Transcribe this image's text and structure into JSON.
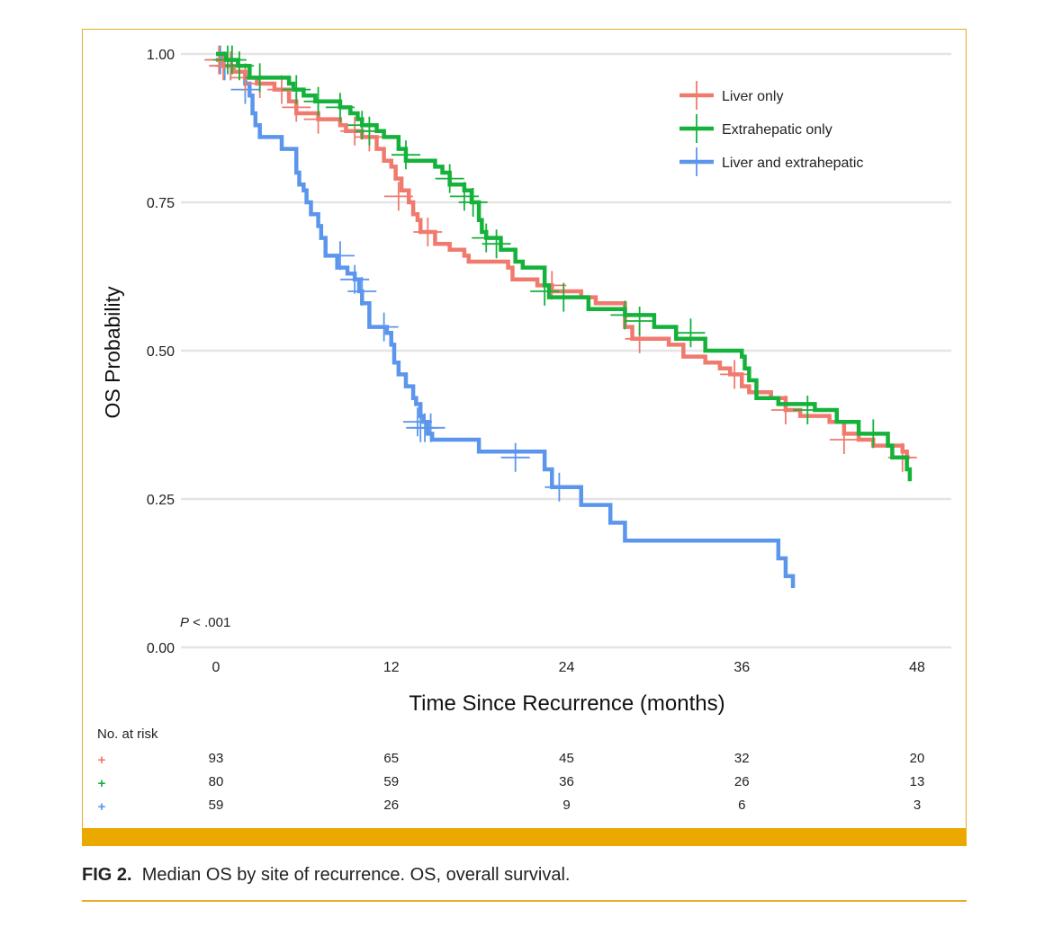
{
  "chart_data": {
    "type": "line",
    "subtype": "kaplan-meier",
    "title": "",
    "xlabel": "Time Since Recurrence (months)",
    "ylabel": "OS Probability",
    "xlim": [
      0,
      48
    ],
    "ylim": [
      0,
      1
    ],
    "x_ticks": [
      "0",
      "12",
      "24",
      "36",
      "48"
    ],
    "y_ticks": [
      "0.00",
      "0.25",
      "0.50",
      "0.75",
      "1.00"
    ],
    "annotation": "P < .001",
    "legend_position": "top-right",
    "series": [
      {
        "name": "Liver only",
        "color": "#f07a6e",
        "steps": [
          [
            0,
            0.99
          ],
          [
            0.5,
            0.98
          ],
          [
            1.2,
            0.97
          ],
          [
            2,
            0.96
          ],
          [
            2.8,
            0.95
          ],
          [
            4,
            0.94
          ],
          [
            5,
            0.92
          ],
          [
            5.5,
            0.9
          ],
          [
            7,
            0.89
          ],
          [
            8.5,
            0.88
          ],
          [
            8.9,
            0.87
          ],
          [
            10,
            0.86
          ],
          [
            11,
            0.84
          ],
          [
            11.5,
            0.82
          ],
          [
            12,
            0.81
          ],
          [
            12.3,
            0.79
          ],
          [
            12.7,
            0.77
          ],
          [
            13.2,
            0.75
          ],
          [
            13.5,
            0.73
          ],
          [
            13.8,
            0.72
          ],
          [
            14,
            0.7
          ],
          [
            15,
            0.68
          ],
          [
            16,
            0.67
          ],
          [
            17,
            0.66
          ],
          [
            17.3,
            0.65
          ],
          [
            20,
            0.64
          ],
          [
            20.3,
            0.62
          ],
          [
            22,
            0.61
          ],
          [
            23,
            0.6
          ],
          [
            25,
            0.59
          ],
          [
            26,
            0.58
          ],
          [
            28,
            0.56
          ],
          [
            28,
            0.54
          ],
          [
            28.5,
            0.52
          ],
          [
            31,
            0.51
          ],
          [
            32,
            0.49
          ],
          [
            33.5,
            0.48
          ],
          [
            34.5,
            0.47
          ],
          [
            35.2,
            0.46
          ],
          [
            36,
            0.44
          ],
          [
            36.5,
            0.43
          ],
          [
            38,
            0.42
          ],
          [
            39,
            0.4
          ],
          [
            40,
            0.39
          ],
          [
            42,
            0.38
          ],
          [
            43,
            0.36
          ],
          [
            44,
            0.35
          ],
          [
            45,
            0.34
          ],
          [
            47,
            0.33
          ],
          [
            47.3,
            0.32
          ]
        ],
        "censor": [
          [
            0.2,
            0.99
          ],
          [
            0.5,
            0.98
          ],
          [
            1,
            0.98
          ],
          [
            2,
            0.96
          ],
          [
            3,
            0.95
          ],
          [
            4.5,
            0.94
          ],
          [
            5.5,
            0.91
          ],
          [
            7,
            0.89
          ],
          [
            9.5,
            0.87
          ],
          [
            10.5,
            0.86
          ],
          [
            12.5,
            0.76
          ],
          [
            14.5,
            0.7
          ],
          [
            23,
            0.61
          ],
          [
            29,
            0.52
          ],
          [
            35.5,
            0.46
          ],
          [
            39,
            0.4
          ],
          [
            43,
            0.35
          ],
          [
            47,
            0.32
          ]
        ],
        "end": 47.5
      },
      {
        "name": "Extrahepatic only",
        "color": "#14b23a",
        "steps": [
          [
            0,
            1.0
          ],
          [
            0.7,
            0.99
          ],
          [
            1.5,
            0.98
          ],
          [
            2.3,
            0.96
          ],
          [
            5,
            0.95
          ],
          [
            5.3,
            0.94
          ],
          [
            6,
            0.93
          ],
          [
            6.8,
            0.92
          ],
          [
            8.5,
            0.91
          ],
          [
            9.2,
            0.9
          ],
          [
            9.7,
            0.89
          ],
          [
            10,
            0.88
          ],
          [
            11,
            0.87
          ],
          [
            11.5,
            0.86
          ],
          [
            12.5,
            0.84
          ],
          [
            13,
            0.82
          ],
          [
            15,
            0.81
          ],
          [
            15.5,
            0.8
          ],
          [
            16,
            0.78
          ],
          [
            17,
            0.77
          ],
          [
            17.5,
            0.75
          ],
          [
            18,
            0.72
          ],
          [
            18.2,
            0.7
          ],
          [
            18.5,
            0.69
          ],
          [
            19.5,
            0.67
          ],
          [
            20.5,
            0.65
          ],
          [
            21,
            0.64
          ],
          [
            22.5,
            0.61
          ],
          [
            22.8,
            0.59
          ],
          [
            25.5,
            0.57
          ],
          [
            28,
            0.56
          ],
          [
            30,
            0.54
          ],
          [
            31.5,
            0.52
          ],
          [
            33.5,
            0.5
          ],
          [
            36,
            0.49
          ],
          [
            36.2,
            0.47
          ],
          [
            36.5,
            0.45
          ],
          [
            37,
            0.42
          ],
          [
            38.5,
            0.41
          ],
          [
            41,
            0.4
          ],
          [
            42.5,
            0.38
          ],
          [
            44,
            0.36
          ],
          [
            46,
            0.34
          ],
          [
            46.3,
            0.32
          ],
          [
            47.3,
            0.3
          ],
          [
            47.5,
            0.28
          ]
        ],
        "censor": [
          [
            0.8,
            0.99
          ],
          [
            1.1,
            0.99
          ],
          [
            1.6,
            0.98
          ],
          [
            3,
            0.96
          ],
          [
            5.5,
            0.94
          ],
          [
            7,
            0.92
          ],
          [
            8.5,
            0.91
          ],
          [
            10,
            0.88
          ],
          [
            10.5,
            0.87
          ],
          [
            13,
            0.83
          ],
          [
            16,
            0.79
          ],
          [
            17,
            0.76
          ],
          [
            17.6,
            0.75
          ],
          [
            18.5,
            0.69
          ],
          [
            19.2,
            0.68
          ],
          [
            22.5,
            0.6
          ],
          [
            23.8,
            0.59
          ],
          [
            28,
            0.56
          ],
          [
            29,
            0.55
          ],
          [
            32.5,
            0.53
          ],
          [
            40.5,
            0.4
          ],
          [
            45,
            0.36
          ]
        ],
        "end": 47.5
      },
      {
        "name": "Liver and extrahepatic",
        "color": "#5b96ec",
        "steps": [
          [
            0,
            1.0
          ],
          [
            0.5,
            0.98
          ],
          [
            1.2,
            0.97
          ],
          [
            2,
            0.95
          ],
          [
            2.3,
            0.93
          ],
          [
            2.5,
            0.9
          ],
          [
            2.7,
            0.88
          ],
          [
            3,
            0.86
          ],
          [
            4.5,
            0.84
          ],
          [
            5.5,
            0.8
          ],
          [
            5.7,
            0.78
          ],
          [
            6,
            0.77
          ],
          [
            6.2,
            0.75
          ],
          [
            6.5,
            0.73
          ],
          [
            7,
            0.71
          ],
          [
            7.2,
            0.69
          ],
          [
            7.5,
            0.66
          ],
          [
            8.3,
            0.64
          ],
          [
            9,
            0.63
          ],
          [
            9.5,
            0.62
          ],
          [
            9.8,
            0.6
          ],
          [
            10,
            0.58
          ],
          [
            10.5,
            0.54
          ],
          [
            11.7,
            0.53
          ],
          [
            12,
            0.51
          ],
          [
            12.2,
            0.48
          ],
          [
            12.5,
            0.46
          ],
          [
            13,
            0.44
          ],
          [
            13.5,
            0.42
          ],
          [
            13.7,
            0.41
          ],
          [
            14,
            0.39
          ],
          [
            14.2,
            0.38
          ],
          [
            14.5,
            0.36
          ],
          [
            14.8,
            0.35
          ],
          [
            18,
            0.33
          ],
          [
            22.5,
            0.3
          ],
          [
            23,
            0.27
          ],
          [
            25,
            0.24
          ],
          [
            27,
            0.21
          ],
          [
            28,
            0.18
          ],
          [
            38.5,
            0.15
          ],
          [
            39,
            0.12
          ],
          [
            39.5,
            0.1
          ]
        ],
        "censor": [
          [
            0.3,
            0.99
          ],
          [
            0.6,
            0.98
          ],
          [
            1,
            0.98
          ],
          [
            2,
            0.94
          ],
          [
            8.5,
            0.66
          ],
          [
            9.5,
            0.62
          ],
          [
            10,
            0.6
          ],
          [
            11.5,
            0.54
          ],
          [
            13.8,
            0.38
          ],
          [
            14,
            0.37
          ],
          [
            14.3,
            0.37
          ],
          [
            14.7,
            0.37
          ],
          [
            20.5,
            0.32
          ],
          [
            23.5,
            0.27
          ]
        ],
        "end": 39.5
      }
    ],
    "risk_table": {
      "title": "No. at risk",
      "times": [
        "0",
        "12",
        "24",
        "36",
        "48"
      ],
      "rows": [
        {
          "series": "Liver only",
          "marker": "+",
          "counts": [
            "93",
            "65",
            "45",
            "32",
            "20"
          ]
        },
        {
          "series": "Extrahepatic only",
          "marker": "+",
          "counts": [
            "80",
            "59",
            "36",
            "26",
            "13"
          ]
        },
        {
          "series": "Liver and extrahepatic",
          "marker": "+",
          "counts": [
            "59",
            "26",
            "9",
            "6",
            "3"
          ]
        }
      ]
    }
  },
  "caption": {
    "label": "FIG 2.",
    "text": "Median OS by site of recurrence. OS, overall survival."
  },
  "colors": {
    "frame": "#e8ac2c",
    "bar": "#eba900"
  }
}
